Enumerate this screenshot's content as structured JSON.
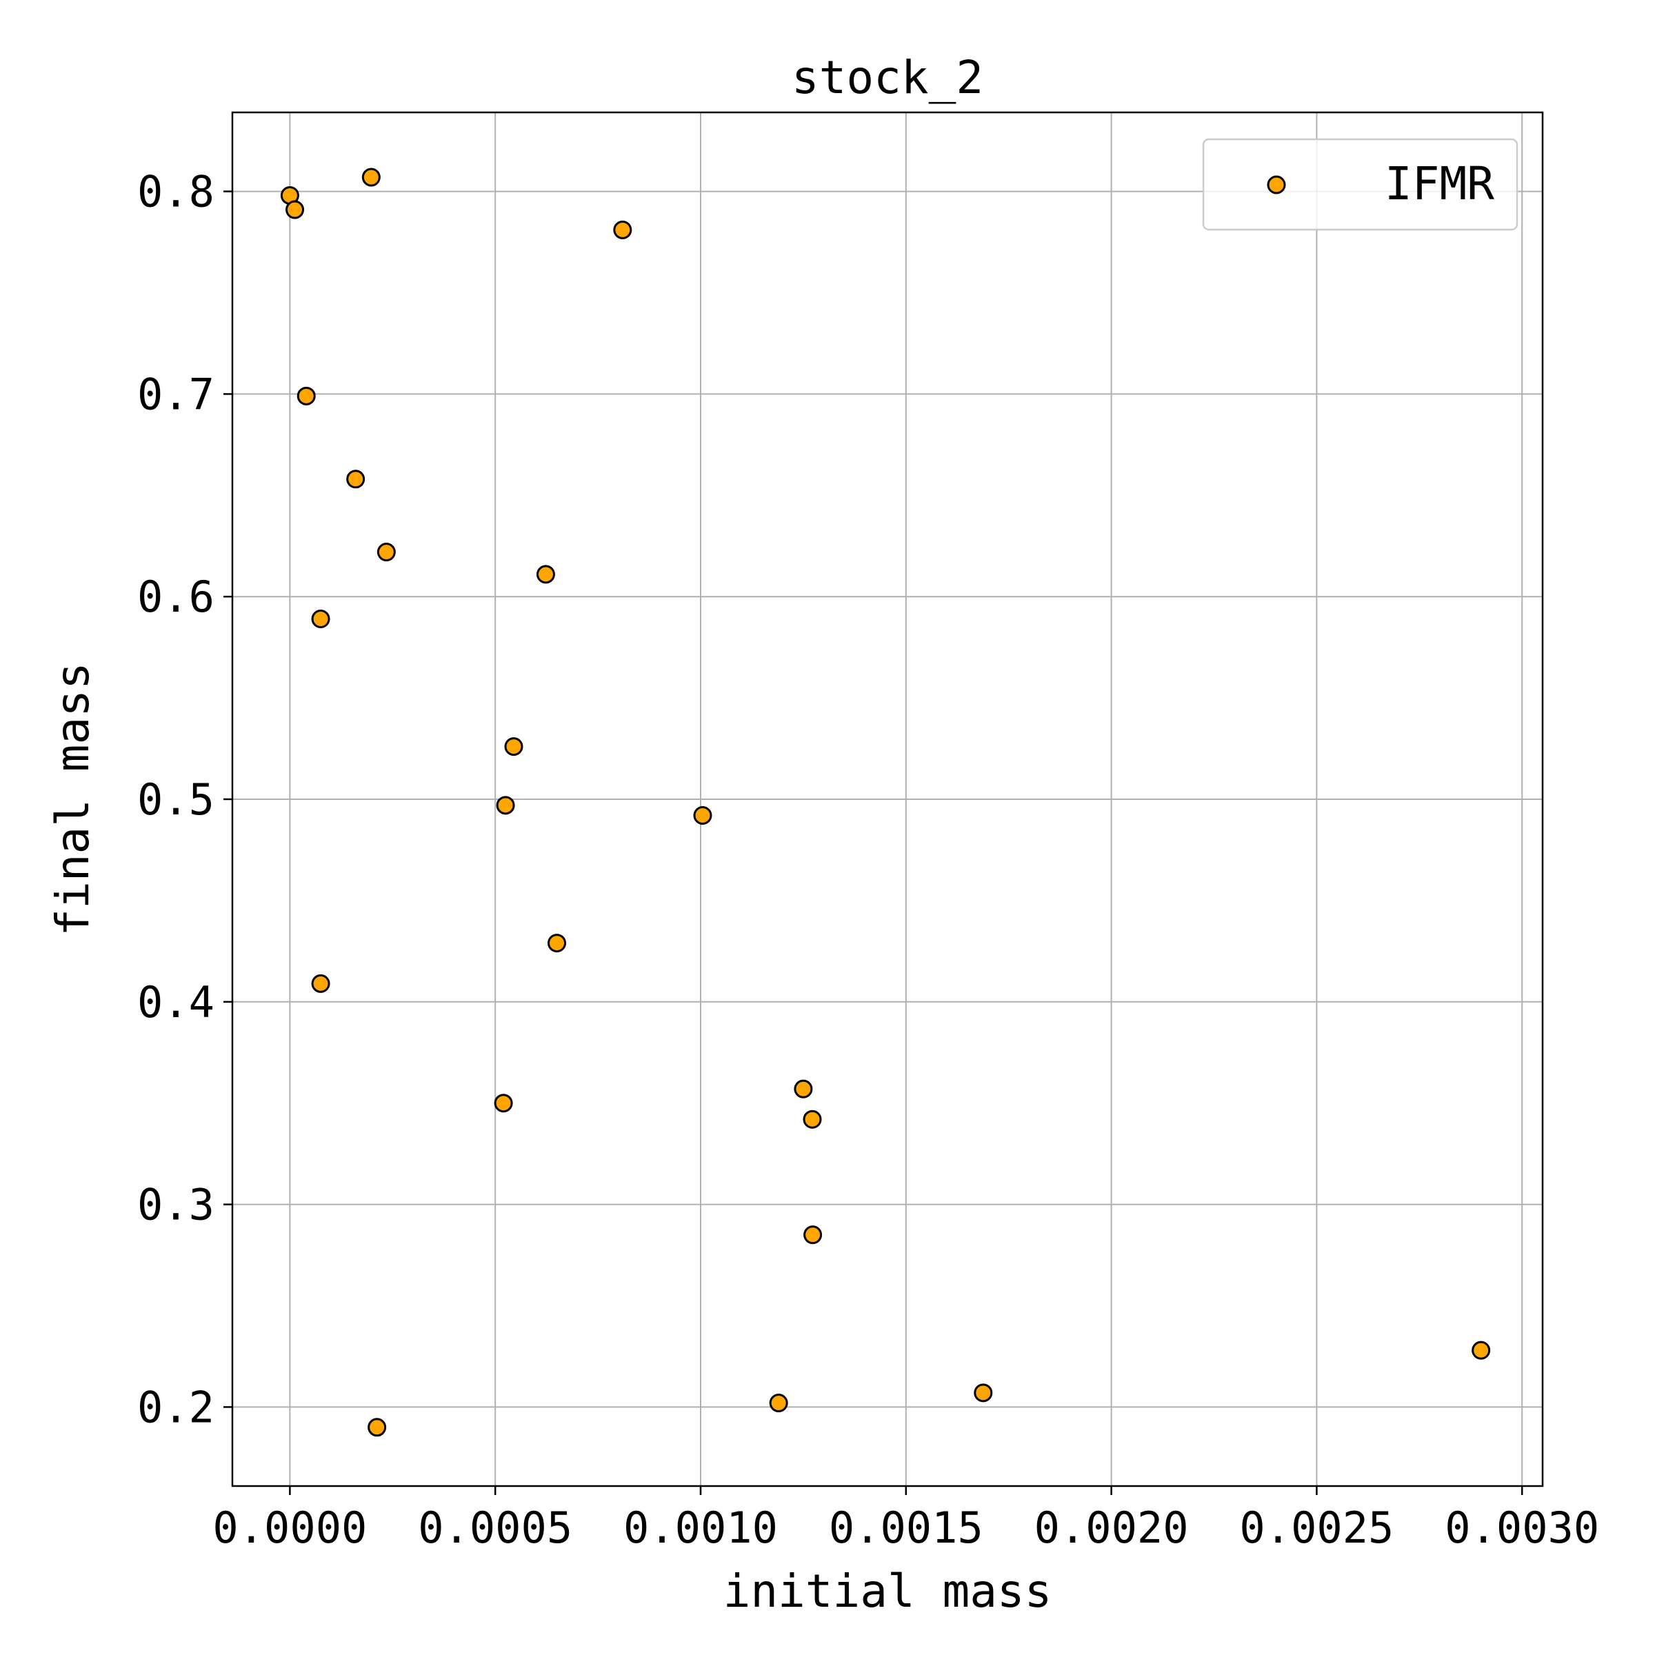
{
  "chart_data": {
    "type": "scatter",
    "title": "stock_2",
    "xlabel": "initial mass",
    "ylabel": "final mass",
    "xlim": [
      -0.00014,
      0.00305
    ],
    "ylim": [
      0.161,
      0.839
    ],
    "xticks": [
      0.0,
      0.0005,
      0.001,
      0.0015,
      0.002,
      0.0025,
      0.003
    ],
    "xtick_labels": [
      "0.0000",
      "0.0005",
      "0.0010",
      "0.0015",
      "0.0020",
      "0.0025",
      "0.0030"
    ],
    "yticks": [
      0.2,
      0.3,
      0.4,
      0.5,
      0.6,
      0.7,
      0.8
    ],
    "ytick_labels": [
      "0.2",
      "0.3",
      "0.4",
      "0.5",
      "0.6",
      "0.7",
      "0.8"
    ],
    "grid": true,
    "legend_position": "top-right",
    "series": [
      {
        "name": "IFMR",
        "color": "#FFA500",
        "edge_color": "#000000",
        "points": [
          {
            "x": 0.0,
            "y": 0.798
          },
          {
            "x": 1.2e-05,
            "y": 0.791
          },
          {
            "x": 0.000198,
            "y": 0.807
          },
          {
            "x": 0.00081,
            "y": 0.781
          },
          {
            "x": 4e-05,
            "y": 0.699
          },
          {
            "x": 0.00016,
            "y": 0.658
          },
          {
            "x": 0.000235,
            "y": 0.622
          },
          {
            "x": 7.5e-05,
            "y": 0.589
          },
          {
            "x": 0.000623,
            "y": 0.611
          },
          {
            "x": 0.000545,
            "y": 0.526
          },
          {
            "x": 0.000525,
            "y": 0.497
          },
          {
            "x": 0.001005,
            "y": 0.492
          },
          {
            "x": 0.00065,
            "y": 0.429
          },
          {
            "x": 7.5e-05,
            "y": 0.409
          },
          {
            "x": 0.00052,
            "y": 0.35
          },
          {
            "x": 0.00125,
            "y": 0.357
          },
          {
            "x": 0.001272,
            "y": 0.342
          },
          {
            "x": 0.001273,
            "y": 0.285
          },
          {
            "x": 0.000212,
            "y": 0.19
          },
          {
            "x": 0.00119,
            "y": 0.202
          },
          {
            "x": 0.001688,
            "y": 0.207
          },
          {
            "x": 0.0029,
            "y": 0.228
          }
        ]
      }
    ]
  }
}
